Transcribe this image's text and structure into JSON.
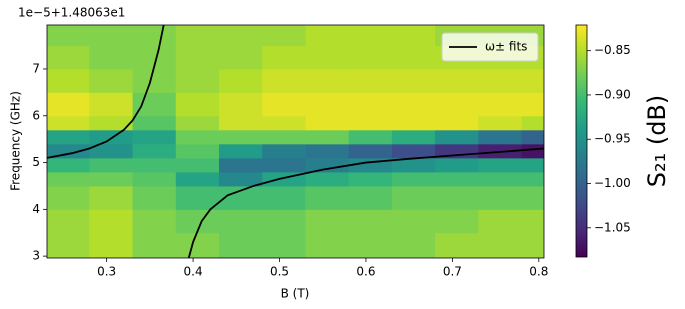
{
  "chart_data": {
    "type": "heatmap",
    "xlabel": "B (T)",
    "ylabel": "Frequency (GHz)",
    "y_offset_label": "1e−5+1.48063e1",
    "xlim": [
      0.231,
      0.806
    ],
    "ylim": [
      2.96,
      7.94
    ],
    "xticks": [
      0.3,
      0.4,
      0.5,
      0.6,
      0.7,
      0.8
    ],
    "yticks": [
      3,
      4,
      5,
      6,
      7
    ],
    "xbins": [
      0.231,
      0.28,
      0.33,
      0.38,
      0.43,
      0.48,
      0.53,
      0.58,
      0.63,
      0.68,
      0.73,
      0.78,
      0.806
    ],
    "ybins": [
      2.96,
      3.5,
      4.0,
      4.5,
      4.8,
      5.1,
      5.4,
      5.7,
      6.0,
      6.5,
      7.0,
      7.5,
      7.94
    ],
    "z": [
      [
        -0.86,
        -0.85,
        -0.87,
        -0.87,
        -0.88,
        -0.88,
        -0.87,
        -0.87,
        -0.87,
        -0.86,
        -0.86,
        -0.86
      ],
      [
        -0.86,
        -0.85,
        -0.87,
        -0.88,
        -0.88,
        -0.88,
        -0.87,
        -0.87,
        -0.87,
        -0.87,
        -0.86,
        -0.86
      ],
      [
        -0.87,
        -0.86,
        -0.88,
        -0.9,
        -0.9,
        -0.9,
        -0.89,
        -0.89,
        -0.88,
        -0.88,
        -0.88,
        -0.88
      ],
      [
        -0.88,
        -0.88,
        -0.89,
        -0.93,
        -0.96,
        -0.93,
        -0.92,
        -0.91,
        -0.9,
        -0.9,
        -0.9,
        -0.9
      ],
      [
        -0.91,
        -0.9,
        -0.9,
        -0.9,
        -0.98,
        -0.98,
        -0.97,
        -0.96,
        -0.95,
        -0.94,
        -0.93,
        -0.93
      ],
      [
        -0.96,
        -0.95,
        -0.92,
        -0.89,
        -0.94,
        -0.97,
        -0.98,
        -1.0,
        -1.02,
        -1.04,
        -1.06,
        -1.07
      ],
      [
        -0.93,
        -0.94,
        -0.93,
        -0.88,
        -0.88,
        -0.88,
        -0.88,
        -0.9,
        -0.92,
        -0.95,
        -0.98,
        -1.0
      ],
      [
        -0.84,
        -0.85,
        -0.89,
        -0.86,
        -0.84,
        -0.84,
        -0.83,
        -0.83,
        -0.83,
        -0.83,
        -0.84,
        -0.85
      ],
      [
        -0.83,
        -0.84,
        -0.88,
        -0.85,
        -0.84,
        -0.83,
        -0.83,
        -0.83,
        -0.83,
        -0.83,
        -0.83,
        -0.83
      ],
      [
        -0.85,
        -0.86,
        -0.87,
        -0.86,
        -0.85,
        -0.84,
        -0.84,
        -0.84,
        -0.84,
        -0.84,
        -0.84,
        -0.84
      ],
      [
        -0.86,
        -0.87,
        -0.87,
        -0.86,
        -0.86,
        -0.85,
        -0.85,
        -0.85,
        -0.85,
        -0.85,
        -0.85,
        -0.85
      ],
      [
        -0.87,
        -0.87,
        -0.87,
        -0.86,
        -0.86,
        -0.86,
        -0.85,
        -0.85,
        -0.85,
        -0.86,
        -0.86,
        -0.86
      ]
    ],
    "colormap": "viridis",
    "clim": [
      -1.083,
      -0.821
    ],
    "colorbar_label": "S₂₁ (dB)",
    "colorbar_ticks": [
      {
        "value": -0.85,
        "label": "−0.85"
      },
      {
        "value": -0.9,
        "label": "−0.90"
      },
      {
        "value": -0.95,
        "label": "−0.95"
      },
      {
        "value": -1.0,
        "label": "−1.00"
      },
      {
        "value": -1.05,
        "label": "−1.05"
      }
    ],
    "legend": "upper right",
    "series": [
      {
        "name": "ω± fits",
        "color": "#000000",
        "x": [
          0.231,
          0.26,
          0.28,
          0.3,
          0.32,
          0.33,
          0.34,
          0.35,
          0.36,
          0.366
        ],
        "y": [
          5.1,
          5.2,
          5.3,
          5.45,
          5.7,
          5.9,
          6.2,
          6.7,
          7.4,
          7.94
        ]
      },
      {
        "color": "#000000",
        "x": [
          0.395,
          0.4,
          0.41,
          0.42,
          0.44,
          0.47,
          0.5,
          0.55,
          0.6,
          0.65,
          0.7,
          0.75,
          0.806
        ],
        "y": [
          2.96,
          3.3,
          3.75,
          4.0,
          4.3,
          4.5,
          4.65,
          4.85,
          5.0,
          5.08,
          5.15,
          5.22,
          5.3
        ]
      }
    ]
  }
}
